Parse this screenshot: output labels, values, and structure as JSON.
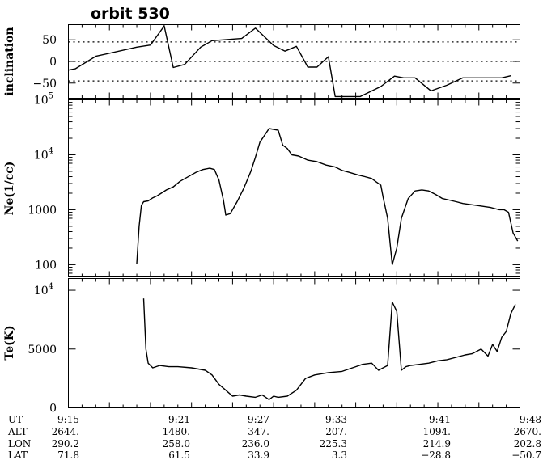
{
  "title": "orbit 530",
  "chart_data": [
    {
      "type": "line",
      "ylabel": "inclination",
      "ylim": [
        -85,
        85
      ],
      "reference_lines": [
        45,
        0,
        -45
      ],
      "yticks": [
        {
          "value": 50,
          "label": "50"
        },
        {
          "value": 0,
          "label": "0"
        },
        {
          "value": -50,
          "label": "−50"
        }
      ],
      "x": [
        "9:15",
        "9:15:30",
        "9:17",
        "9:20",
        "9:21",
        "9:22",
        "9:22:40",
        "9:23:30",
        "9:24:40",
        "9:25:30",
        "9:27:40",
        "9:28:40",
        "9:30",
        "9:30:50",
        "9:31:40",
        "9:32:30",
        "9:33:10",
        "9:34",
        "9:34:30",
        "9:35:30",
        "9:36:20",
        "9:37:50",
        "9:38:50",
        "9:39:30",
        "9:40:20",
        "9:41:30",
        "9:42:40",
        "9:43:50",
        "9:45",
        "9:46",
        "9:46:40",
        "9:47:20"
      ],
      "y": [
        -20,
        -17,
        12,
        33,
        38,
        82,
        -14,
        -7,
        33,
        48,
        53,
        77,
        37,
        24,
        35,
        -13,
        -13,
        11,
        -81,
        -81,
        -81,
        -58,
        -34,
        -38,
        -38,
        -68,
        -55,
        -38,
        -38,
        -38,
        -38,
        -33
      ]
    },
    {
      "type": "line",
      "scale": "log",
      "ylabel": "Ne(1/cc)",
      "ylim": [
        60,
        100000
      ],
      "yticks": [
        {
          "value": 100000,
          "base": "10",
          "exp": "5"
        },
        {
          "value": 10000,
          "base": "10",
          "exp": "4"
        },
        {
          "value": 1000,
          "base": "1000",
          "exp": ""
        },
        {
          "value": 100,
          "base": "100",
          "exp": ""
        }
      ],
      "x": [
        "9:20",
        "9:20:10",
        "9:20:20",
        "9:20:30",
        "9:20:50",
        "9:21:10",
        "9:21:30",
        "9:22:10",
        "9:22:40",
        "9:23:10",
        "9:23:50",
        "9:24:20",
        "9:24:50",
        "9:25:20",
        "9:25:40",
        "9:26",
        "9:26:20",
        "9:26:30",
        "9:26:50",
        "9:27:20",
        "9:27:50",
        "9:28:20",
        "9:28:40",
        "9:29",
        "9:29:40",
        "9:30",
        "9:30:20",
        "9:30:40",
        "9:31",
        "9:31:20",
        "9:31:50",
        "9:32:30",
        "9:33:10",
        "9:33:50",
        "9:34:30",
        "9:35",
        "9:35:30",
        "9:36:10",
        "9:36:40",
        "9:37:10",
        "9:37:30",
        "9:37:50",
        "9:38",
        "9:38:20",
        "9:38:40",
        "9:39",
        "9:39:20",
        "9:39:50",
        "9:40:20",
        "9:40:50",
        "9:41:20",
        "9:41:50",
        "9:42:20",
        "9:42:50",
        "9:43:20",
        "9:43:50",
        "9:44:20",
        "9:44:50",
        "9:45:20",
        "9:45:50",
        "9:46:10",
        "9:46:30",
        "9:46:50",
        "9:47:10",
        "9:47:30",
        "9:47:50"
      ],
      "y": [
        105,
        500,
        1200,
        1400,
        1450,
        1650,
        1800,
        2300,
        2600,
        3300,
        4100,
        4800,
        5400,
        5700,
        5400,
        3500,
        1500,
        800,
        850,
        1400,
        2500,
        5000,
        9000,
        17000,
        30000,
        29000,
        28000,
        15000,
        13000,
        10000,
        9500,
        8000,
        7500,
        6500,
        6000,
        5200,
        4800,
        4300,
        4000,
        3700,
        3200,
        2800,
        1700,
        700,
        100,
        200,
        700,
        1600,
        2200,
        2300,
        2200,
        1900,
        1600,
        1500,
        1400,
        1300,
        1250,
        1200,
        1150,
        1100,
        1050,
        1000,
        1000,
        900,
        380,
        270
      ]
    },
    {
      "type": "line",
      "ylabel": "Te(K)",
      "ylim": [
        0,
        11000
      ],
      "yticks": [
        {
          "value": 10000,
          "base": "10",
          "exp": "4"
        },
        {
          "value": 5000,
          "base": "5000",
          "exp": ""
        },
        {
          "value": 0,
          "base": "0",
          "exp": ""
        }
      ],
      "x": [
        "9:20:30",
        "9:20:40",
        "9:20:50",
        "9:21:10",
        "9:21:40",
        "9:22:20",
        "9:23",
        "9:24",
        "9:25",
        "9:25:30",
        "9:26",
        "9:26:30",
        "9:27",
        "9:27:30",
        "9:28",
        "9:28:40",
        "9:29:10",
        "9:29:40",
        "9:30",
        "9:30:20",
        "9:31",
        "9:31:40",
        "9:32:20",
        "9:33",
        "9:34",
        "9:35",
        "9:36",
        "9:36:30",
        "9:37:10",
        "9:37:40",
        "9:38",
        "9:38:20",
        "9:38:40",
        "9:39",
        "9:39:20",
        "9:39:40",
        "9:40",
        "9:40:40",
        "9:41:20",
        "9:42",
        "9:42:40",
        "9:43:20",
        "9:44",
        "9:44:30",
        "9:45:10",
        "9:45:40",
        "9:46",
        "9:46:20",
        "9:46:40",
        "9:47",
        "9:47:20",
        "9:47:40"
      ],
      "y": [
        9300,
        5000,
        3800,
        3400,
        3600,
        3500,
        3500,
        3400,
        3200,
        2800,
        2000,
        1500,
        1000,
        1100,
        1000,
        900,
        1100,
        700,
        1000,
        900,
        1000,
        1500,
        2500,
        2800,
        3000,
        3100,
        3500,
        3700,
        3800,
        3200,
        3400,
        3600,
        9000,
        8200,
        3200,
        3500,
        3600,
        3700,
        3800,
        4000,
        4100,
        4300,
        4500,
        4600,
        5000,
        4400,
        5400,
        4800,
        6000,
        6500,
        8000,
        8800
      ]
    }
  ],
  "footer": {
    "row_labels": [
      "UT",
      "ALT",
      "LON",
      "LAT"
    ],
    "columns": [
      {
        "ut": "9:15",
        "alt": "2644.",
        "lon": "290.2",
        "lat": "71.8"
      },
      {
        "ut": "9:21",
        "alt": "1480.",
        "lon": "258.0",
        "lat": "61.5"
      },
      {
        "ut": "9:27",
        "alt": "347.",
        "lon": "236.0",
        "lat": "33.9"
      },
      {
        "ut": "9:33",
        "alt": "207.",
        "lon": "225.3",
        "lat": "3.3"
      },
      {
        "ut": "9:41",
        "alt": "1094.",
        "lon": "214.9",
        "lat": "−28.8"
      },
      {
        "ut": "9:48",
        "alt": "2670.",
        "lon": "202.8",
        "lat": "−50.7"
      }
    ]
  }
}
